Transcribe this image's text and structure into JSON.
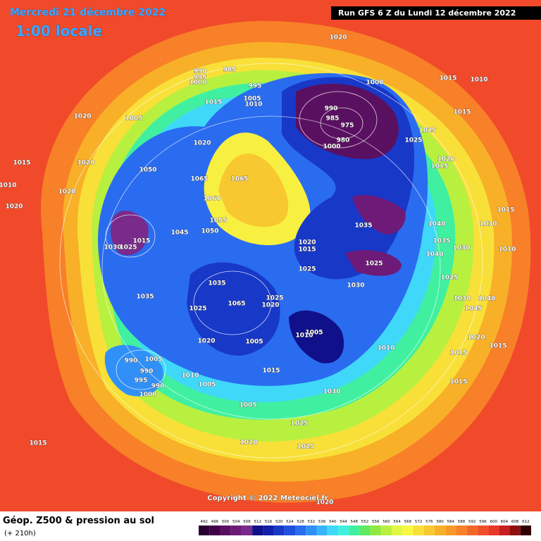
{
  "header": {
    "date": "Mercredi 21 décembre 2022",
    "time": "1:00 locale",
    "run": "Run GFS 6 Z du Lundi 12 décembre 2022"
  },
  "copyright": "Copyright © 2022 Meteociel.fr",
  "footer": {
    "title": "Géop. Z500 & pression au sol",
    "lead": "(+ 210h)"
  },
  "colorbar": {
    "values": [
      492,
      496,
      500,
      504,
      508,
      512,
      516,
      520,
      524,
      528,
      532,
      536,
      540,
      544,
      548,
      552,
      556,
      560,
      564,
      568,
      572,
      576,
      580,
      584,
      588,
      592,
      596,
      600,
      604,
      608,
      612
    ],
    "colors": [
      "#2a0030",
      "#40004a",
      "#5a1060",
      "#6e1a78",
      "#7a2a8a",
      "#10108a",
      "#1020a8",
      "#1838c8",
      "#2050e0",
      "#2a6cf0",
      "#3090f8",
      "#38b4fc",
      "#40d8f8",
      "#40f0e0",
      "#40f0a0",
      "#60e860",
      "#90e840",
      "#b8f040",
      "#e0f840",
      "#f8f840",
      "#f8e038",
      "#f8c830",
      "#f8b028",
      "#f89828",
      "#f88028",
      "#f06828",
      "#f05028",
      "#e83828",
      "#c82020",
      "#901010",
      "#300000"
    ]
  },
  "pressure_labels": [
    1020,
    990,
    995,
    1000,
    985,
    995,
    1005,
    1010,
    1015,
    1000,
    1015,
    1010,
    1015,
    1020,
    1005,
    990,
    985,
    975,
    980,
    1000,
    1025,
    1025,
    1020,
    1015,
    1015,
    1020,
    1010,
    1050,
    1065,
    1065,
    1020,
    1020,
    1020,
    1060,
    1055,
    1050,
    1015,
    1030,
    1025,
    1045,
    1020,
    1015,
    1035,
    1040,
    1035,
    1040,
    1030,
    1015,
    1030,
    1010,
    1025,
    1025,
    1030,
    1025,
    1035,
    1035,
    1065,
    1020,
    1025,
    1025,
    1030,
    1040,
    1045,
    1005,
    1010,
    1020,
    1015,
    1020,
    1005,
    1010,
    1015,
    990,
    1005,
    990,
    995,
    990,
    1000,
    1010,
    1005,
    1015,
    1030,
    1015,
    1005,
    1025,
    1020,
    1025,
    1015,
    1020
  ]
}
